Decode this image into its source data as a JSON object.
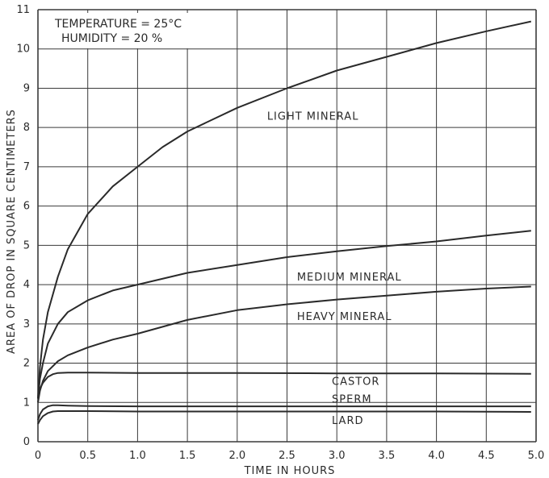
{
  "chart_data": {
    "type": "line",
    "title": "",
    "xlabel": "TIME IN HOURS",
    "ylabel": "AREA OF DROP IN SQUARE CENTIMETERS",
    "xlim": [
      0,
      5.0
    ],
    "ylim": [
      0,
      11
    ],
    "x_ticks": [
      "0",
      "0.5",
      "1.0",
      "1.5",
      "2.0",
      "2.5",
      "3.0",
      "3.5",
      "4.0",
      "4.5",
      "5.0"
    ],
    "y_ticks": [
      "0",
      "1",
      "2",
      "3",
      "4",
      "5",
      "6",
      "7",
      "8",
      "9",
      "10",
      "11"
    ],
    "grid": true,
    "annotations": [
      "TEMPERATURE = 25°C",
      "HUMIDITY = 20 %"
    ],
    "series": [
      {
        "name": "LIGHT MINERAL",
        "x": [
          0,
          0.02,
          0.05,
          0.1,
          0.2,
          0.3,
          0.5,
          0.75,
          1.0,
          1.25,
          1.5,
          2.0,
          2.5,
          3.0,
          3.5,
          4.0,
          4.5,
          4.95
        ],
        "y": [
          1.1,
          1.9,
          2.6,
          3.3,
          4.2,
          4.9,
          5.8,
          6.5,
          7.0,
          7.5,
          7.9,
          8.5,
          9.0,
          9.45,
          9.8,
          10.15,
          10.45,
          10.7
        ]
      },
      {
        "name": "MEDIUM MINERAL",
        "x": [
          0,
          0.02,
          0.05,
          0.1,
          0.2,
          0.3,
          0.5,
          0.75,
          1.0,
          1.5,
          2.0,
          2.5,
          3.0,
          3.5,
          4.0,
          4.5,
          4.95
        ],
        "y": [
          1.1,
          1.6,
          2.0,
          2.5,
          3.0,
          3.3,
          3.6,
          3.85,
          4.0,
          4.3,
          4.5,
          4.7,
          4.85,
          4.98,
          5.1,
          5.25,
          5.37
        ]
      },
      {
        "name": "HEAVY MINERAL",
        "x": [
          0,
          0.02,
          0.05,
          0.1,
          0.2,
          0.3,
          0.5,
          0.75,
          1.0,
          1.5,
          2.0,
          2.5,
          3.0,
          3.5,
          4.0,
          4.5,
          4.95
        ],
        "y": [
          1.0,
          1.3,
          1.55,
          1.8,
          2.05,
          2.2,
          2.4,
          2.6,
          2.75,
          3.1,
          3.35,
          3.5,
          3.62,
          3.72,
          3.82,
          3.9,
          3.95
        ]
      },
      {
        "name": "CASTOR",
        "x": [
          0,
          0.02,
          0.05,
          0.1,
          0.15,
          0.2,
          0.3,
          0.5,
          1.0,
          2.0,
          3.0,
          4.0,
          4.95
        ],
        "y": [
          1.1,
          1.35,
          1.5,
          1.65,
          1.72,
          1.75,
          1.76,
          1.76,
          1.75,
          1.75,
          1.74,
          1.74,
          1.73
        ]
      },
      {
        "name": "SPERM",
        "x": [
          0,
          0.02,
          0.05,
          0.1,
          0.15,
          0.2,
          0.3,
          0.5,
          1.0,
          2.0,
          3.0,
          4.0,
          4.95
        ],
        "y": [
          0.55,
          0.7,
          0.82,
          0.9,
          0.93,
          0.93,
          0.92,
          0.91,
          0.9,
          0.9,
          0.9,
          0.9,
          0.9
        ]
      },
      {
        "name": "LARD",
        "x": [
          0,
          0.02,
          0.05,
          0.1,
          0.15,
          0.2,
          0.3,
          0.5,
          1.0,
          2.0,
          3.0,
          4.0,
          4.95
        ],
        "y": [
          0.45,
          0.55,
          0.65,
          0.73,
          0.77,
          0.78,
          0.78,
          0.78,
          0.77,
          0.77,
          0.77,
          0.77,
          0.76
        ]
      }
    ],
    "colors": {
      "line": "#2a2a2a",
      "grid": "#3a3a3a",
      "background": "#ffffff"
    }
  }
}
